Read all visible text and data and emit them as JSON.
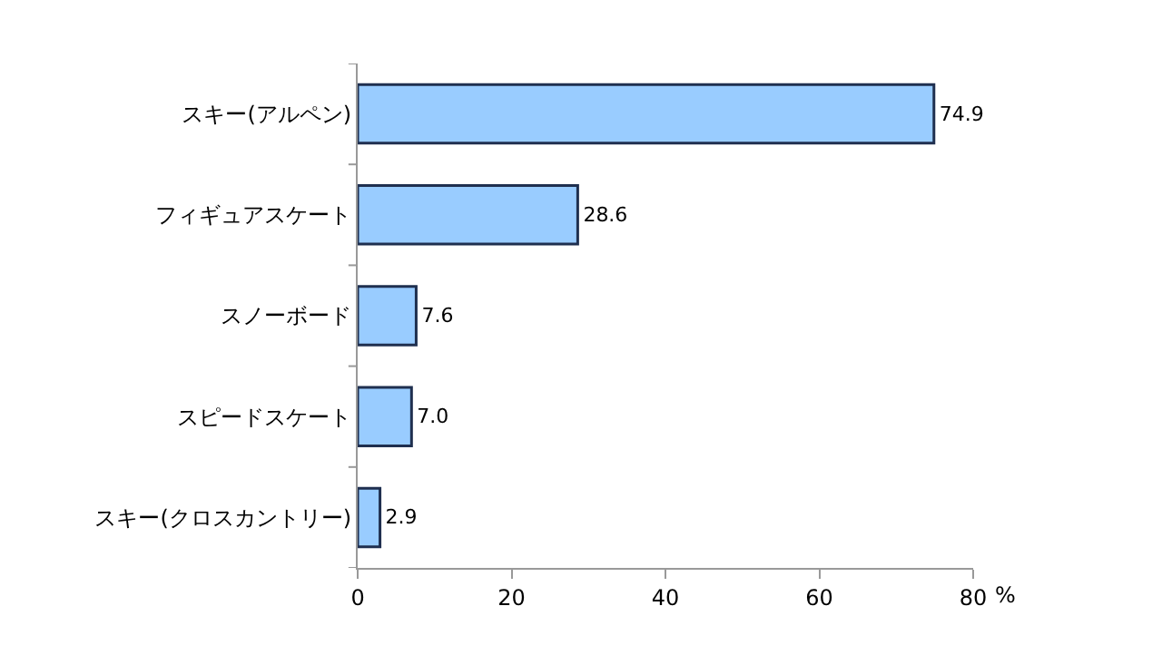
{
  "chart_data": {
    "type": "bar",
    "orientation": "horizontal",
    "categories": [
      "スキー(アルペン)",
      "フィギュアスケート",
      "スノーボード",
      "スピードスケート",
      "スキー(クロスカントリー)"
    ],
    "values": [
      74.9,
      28.6,
      7.6,
      7.0,
      2.9
    ],
    "color": "#99ccff",
    "value_labels": [
      "74.9",
      "28.6",
      "7.6",
      "7.0",
      "2.9"
    ],
    "xlabel": "%",
    "xlim": [
      0,
      80
    ],
    "xticks": [
      0,
      20,
      40,
      60,
      80
    ]
  }
}
